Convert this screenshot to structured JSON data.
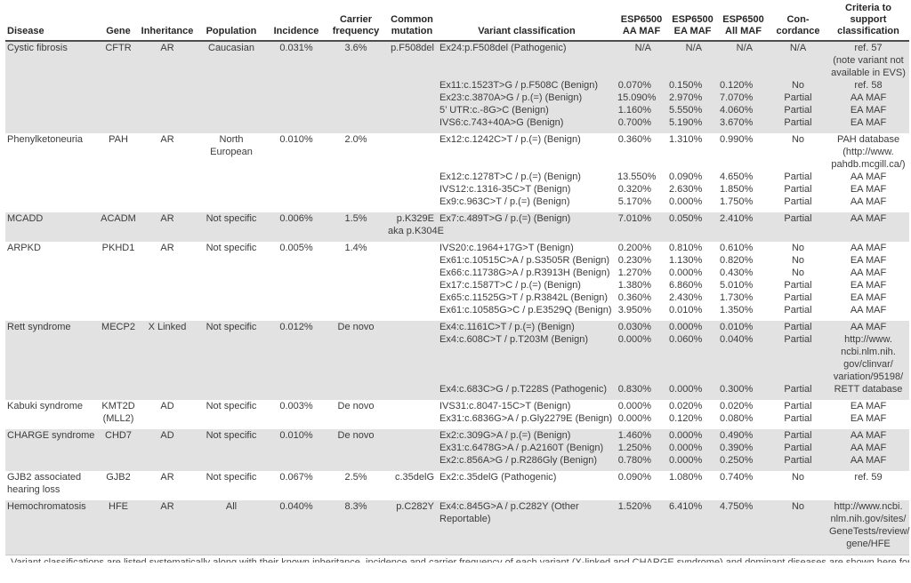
{
  "colors": {
    "row_stripe": "#e2e2e2",
    "header_rule": "#4d4d4d",
    "body_text": "#3c3c3c"
  },
  "table": {
    "columns": [
      {
        "id": "disease",
        "label": "Disease"
      },
      {
        "id": "gene",
        "label": "Gene"
      },
      {
        "id": "inheritance",
        "label": "Inheritance"
      },
      {
        "id": "population",
        "label": "Population"
      },
      {
        "id": "incidence",
        "label": "Incidence"
      },
      {
        "id": "carrier_frequency",
        "label": "Carrier\nfrequency"
      },
      {
        "id": "common_mutation",
        "label": "Common\nmutation"
      },
      {
        "id": "classification",
        "label": "Variant classification"
      },
      {
        "id": "aa_maf",
        "label": "ESP6500\nAA MAF"
      },
      {
        "id": "ea_maf",
        "label": "ESP6500\nEA MAF"
      },
      {
        "id": "all_maf",
        "label": "ESP6500\nAll MAF"
      },
      {
        "id": "concordance",
        "label": "Con-\ncordance"
      },
      {
        "id": "criteria",
        "label": "Criteria to\nsupport\nclassification"
      }
    ],
    "sections": [
      {
        "disease": "Cystic fibrosis",
        "gene": "CFTR",
        "inheritance": "AR",
        "population": "Caucasian",
        "incidence": "0.031%",
        "carrier_frequency": "3.6%",
        "common_mutation": "p.F508del",
        "shaded": true,
        "variants": [
          {
            "classification": "Ex24:p.F508del (Pathogenic)",
            "aa_maf": "N/A",
            "ea_maf": "N/A",
            "all_maf": "N/A",
            "concordance": "N/A",
            "criteria": "ref. 57\n(note variant not\navailable in EVS)"
          },
          {
            "classification": "Ex11:c.1523T>G / p.F508C (Benign)",
            "aa_maf": "0.070%",
            "ea_maf": "0.150%",
            "all_maf": "0.120%",
            "concordance": "No",
            "criteria": "ref. 58"
          },
          {
            "classification": "Ex23:c.3870A>G / p.(=) (Benign)",
            "aa_maf": "15.090%",
            "ea_maf": "2.970%",
            "all_maf": "7.070%",
            "concordance": "Partial",
            "criteria": "AA MAF"
          },
          {
            "classification": "5’ UTR:c.-8G>C (Benign)",
            "aa_maf": "1.160%",
            "ea_maf": "5.550%",
            "all_maf": "4.060%",
            "concordance": "Partial",
            "criteria": "EA MAF"
          },
          {
            "classification": "IVS6:c.743+40A>G (Benign)",
            "aa_maf": "0.700%",
            "ea_maf": "5.190%",
            "all_maf": "3.670%",
            "concordance": "Partial",
            "criteria": "EA MAF"
          }
        ]
      },
      {
        "disease": "Phenylketoneuria",
        "gene": "PAH",
        "inheritance": "AR",
        "population": "North\nEuropean",
        "incidence": "0.010%",
        "carrier_frequency": "2.0%",
        "common_mutation": "",
        "shaded": false,
        "variants": [
          {
            "classification": "Ex12:c.1242C>T / p.(=) (Benign)",
            "aa_maf": "0.360%",
            "ea_maf": "1.310%",
            "all_maf": "0.990%",
            "concordance": "No",
            "criteria": "PAH database\n(http://www.\npahdb.mcgill.ca/)"
          },
          {
            "classification": "Ex12:c.1278T>C / p.(=) (Benign)",
            "aa_maf": "13.550%",
            "ea_maf": "0.090%",
            "all_maf": "4.650%",
            "concordance": "Partial",
            "criteria": "AA MAF"
          },
          {
            "classification": "IVS12:c.1316-35C>T (Benign)",
            "aa_maf": "0.320%",
            "ea_maf": "2.630%",
            "all_maf": "1.850%",
            "concordance": "Partial",
            "criteria": "EA MAF"
          },
          {
            "classification": "Ex9:c.963C>T / p.(=) (Benign)",
            "aa_maf": "5.170%",
            "ea_maf": "0.000%",
            "all_maf": "1.750%",
            "concordance": "Partial",
            "criteria": "AA MAF"
          }
        ]
      },
      {
        "disease": "MCADD",
        "gene": "ACADM",
        "inheritance": "AR",
        "population": "Not specific",
        "incidence": "0.006%",
        "carrier_frequency": "1.5%",
        "common_mutation": "p.K329E\naka p.K304E",
        "shaded": true,
        "variants": [
          {
            "classification": "Ex7:c.489T>G / p.(=) (Benign)",
            "aa_maf": "7.010%",
            "ea_maf": "0.050%",
            "all_maf": "2.410%",
            "concordance": "Partial",
            "criteria": "AA MAF"
          }
        ]
      },
      {
        "disease": "ARPKD",
        "gene": "PKHD1",
        "inheritance": "AR",
        "population": "Not specific",
        "incidence": "0.005%",
        "carrier_frequency": "1.4%",
        "common_mutation": "",
        "shaded": false,
        "variants": [
          {
            "classification": "IVS20:c.1964+17G>T (Benign)",
            "aa_maf": "0.200%",
            "ea_maf": "0.810%",
            "all_maf": "0.610%",
            "concordance": "No",
            "criteria": "AA MAF"
          },
          {
            "classification": "Ex61:c.10515C>A / p.S3505R (Benign)",
            "aa_maf": "0.230%",
            "ea_maf": "1.130%",
            "all_maf": "0.820%",
            "concordance": "No",
            "criteria": "EA MAF"
          },
          {
            "classification": "Ex66:c.11738G>A / p.R3913H (Benign)",
            "aa_maf": "1.270%",
            "ea_maf": "0.000%",
            "all_maf": "0.430%",
            "concordance": "No",
            "criteria": "AA MAF"
          },
          {
            "classification": "Ex17:c.1587T>C / p.(=) (Benign)",
            "aa_maf": "1.380%",
            "ea_maf": "6.860%",
            "all_maf": "5.010%",
            "concordance": "Partial",
            "criteria": "EA MAF"
          },
          {
            "classification": "Ex65:c.11525G>T / p.R3842L (Benign)",
            "aa_maf": "0.360%",
            "ea_maf": "2.430%",
            "all_maf": "1.730%",
            "concordance": "Partial",
            "criteria": "EA MAF"
          },
          {
            "classification": "Ex61:c.10585G>C / p.E3529Q (Benign)",
            "aa_maf": "3.950%",
            "ea_maf": "0.010%",
            "all_maf": "1.350%",
            "concordance": "Partial",
            "criteria": "AA MAF"
          }
        ]
      },
      {
        "disease": "Rett syndrome",
        "gene": "MECP2",
        "inheritance": "X Linked",
        "population": "Not specific",
        "incidence": "0.012%",
        "carrier_frequency": "De novo",
        "common_mutation": "",
        "shaded": true,
        "variants": [
          {
            "classification": "Ex4:c.1161C>T / p.(=) (Benign)",
            "aa_maf": "0.030%",
            "ea_maf": "0.000%",
            "all_maf": "0.010%",
            "concordance": "Partial",
            "criteria": "AA MAF"
          },
          {
            "classification": "Ex4:c.608C>T / p.T203M (Benign)",
            "aa_maf": "0.000%",
            "ea_maf": "0.060%",
            "all_maf": "0.040%",
            "concordance": "Partial",
            "criteria": "http://www.\nncbi.nlm.nih.\ngov/clinvar/\nvariation/95198/"
          },
          {
            "classification": "Ex4:c.683C>G / p.T228S (Pathogenic)",
            "aa_maf": "0.830%",
            "ea_maf": "0.000%",
            "all_maf": "0.300%",
            "concordance": "Partial",
            "criteria": "RETT database"
          }
        ]
      },
      {
        "disease": "Kabuki syndrome",
        "gene": "KMT2D\n(MLL2)",
        "inheritance": "AD",
        "population": "Not specific",
        "incidence": "0.003%",
        "carrier_frequency": "De novo",
        "common_mutation": "",
        "shaded": false,
        "variants": [
          {
            "classification": "IVS31:c.8047-15C>T (Benign)",
            "aa_maf": "0.000%",
            "ea_maf": "0.020%",
            "all_maf": "0.020%",
            "concordance": "Partial",
            "criteria": "EA MAF"
          },
          {
            "classification": "Ex31:c.6836G>A / p.Gly2279E (Benign)",
            "aa_maf": "0.000%",
            "ea_maf": "0.120%",
            "all_maf": "0.080%",
            "concordance": "Partial",
            "criteria": "EA MAF"
          }
        ]
      },
      {
        "disease": "CHARGE syndrome",
        "gene": "CHD7",
        "inheritance": "AD",
        "population": "Not specific",
        "incidence": "0.010%",
        "carrier_frequency": "De novo",
        "common_mutation": "",
        "shaded": true,
        "variants": [
          {
            "classification": "Ex2:c.309G>A / p.(=) (Benign)",
            "aa_maf": "1.460%",
            "ea_maf": "0.000%",
            "all_maf": "0.490%",
            "concordance": "Partial",
            "criteria": "AA MAF"
          },
          {
            "classification": "Ex31:c.6478G>A / p.A2160T (Benign)",
            "aa_maf": "1.250%",
            "ea_maf": "0.000%",
            "all_maf": "0.390%",
            "concordance": "Partial",
            "criteria": "AA MAF"
          },
          {
            "classification": "Ex2:c.856A>G / p.R286Gly (Benign)",
            "aa_maf": "0.780%",
            "ea_maf": "0.000%",
            "all_maf": "0.250%",
            "concordance": "Partial",
            "criteria": "AA MAF"
          }
        ]
      },
      {
        "disease": "GJB2 associated\nhearing loss",
        "gene": "GJB2",
        "inheritance": "AR",
        "population": "Not specific",
        "incidence": "0.067%",
        "carrier_frequency": "2.5%",
        "common_mutation": "c.35delG",
        "shaded": false,
        "variants": [
          {
            "classification": "Ex2:c.35delG (Pathogenic)",
            "aa_maf": "0.090%",
            "ea_maf": "1.080%",
            "all_maf": "0.740%",
            "concordance": "No",
            "criteria": "ref. 59"
          }
        ]
      },
      {
        "disease": "Hemochromatosis",
        "gene": "HFE",
        "inheritance": "AR",
        "population": "All",
        "incidence": "0.040%",
        "carrier_frequency": "8.3%",
        "common_mutation": "p.C282Y",
        "shaded": true,
        "variants": [
          {
            "classification": "Ex4:c.845G>A / p.C282Y (Other\nReportable)",
            "aa_maf": "1.520%",
            "ea_maf": "6.410%",
            "all_maf": "4.750%",
            "concordance": "No",
            "criteria": "http://www.ncbi.\nnlm.nih.gov/sites/\nGeneTests/review/\ngene/HFE"
          }
        ]
      }
    ]
  },
  "footnote_clipped": "Variant classifications are listed systematically along with their known inheritance, incidence and carrier frequency of each variant (X-linked and CHARGE syndrome) and dominant diseases are shown here for a variety of genes listed in earlier sections."
}
